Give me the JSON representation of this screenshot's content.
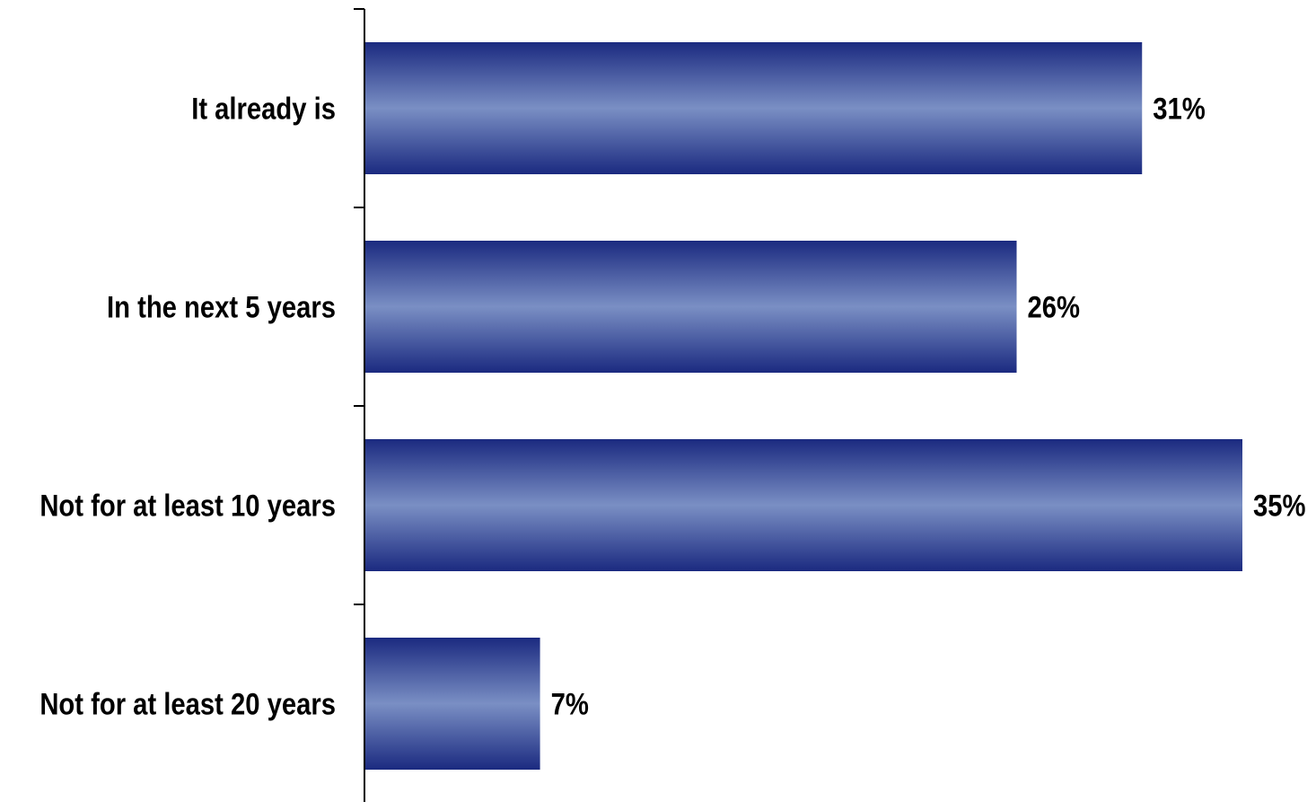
{
  "chart_data": {
    "type": "bar",
    "orientation": "horizontal",
    "categories": [
      "It already is",
      "In the next 5 years",
      "Not for at least 10 years",
      "Not for at least 20 years"
    ],
    "values": [
      31,
      26,
      35,
      7
    ],
    "value_labels": [
      "31%",
      "26%",
      "35%",
      "7%"
    ],
    "unit": "%",
    "xlim": [
      0,
      35
    ],
    "grid": false,
    "legend": "none",
    "colors": {
      "bar_edge": "#1b2a80",
      "bar_center": "#7a8fc4",
      "axis": "#000000",
      "text": "#000000"
    }
  }
}
